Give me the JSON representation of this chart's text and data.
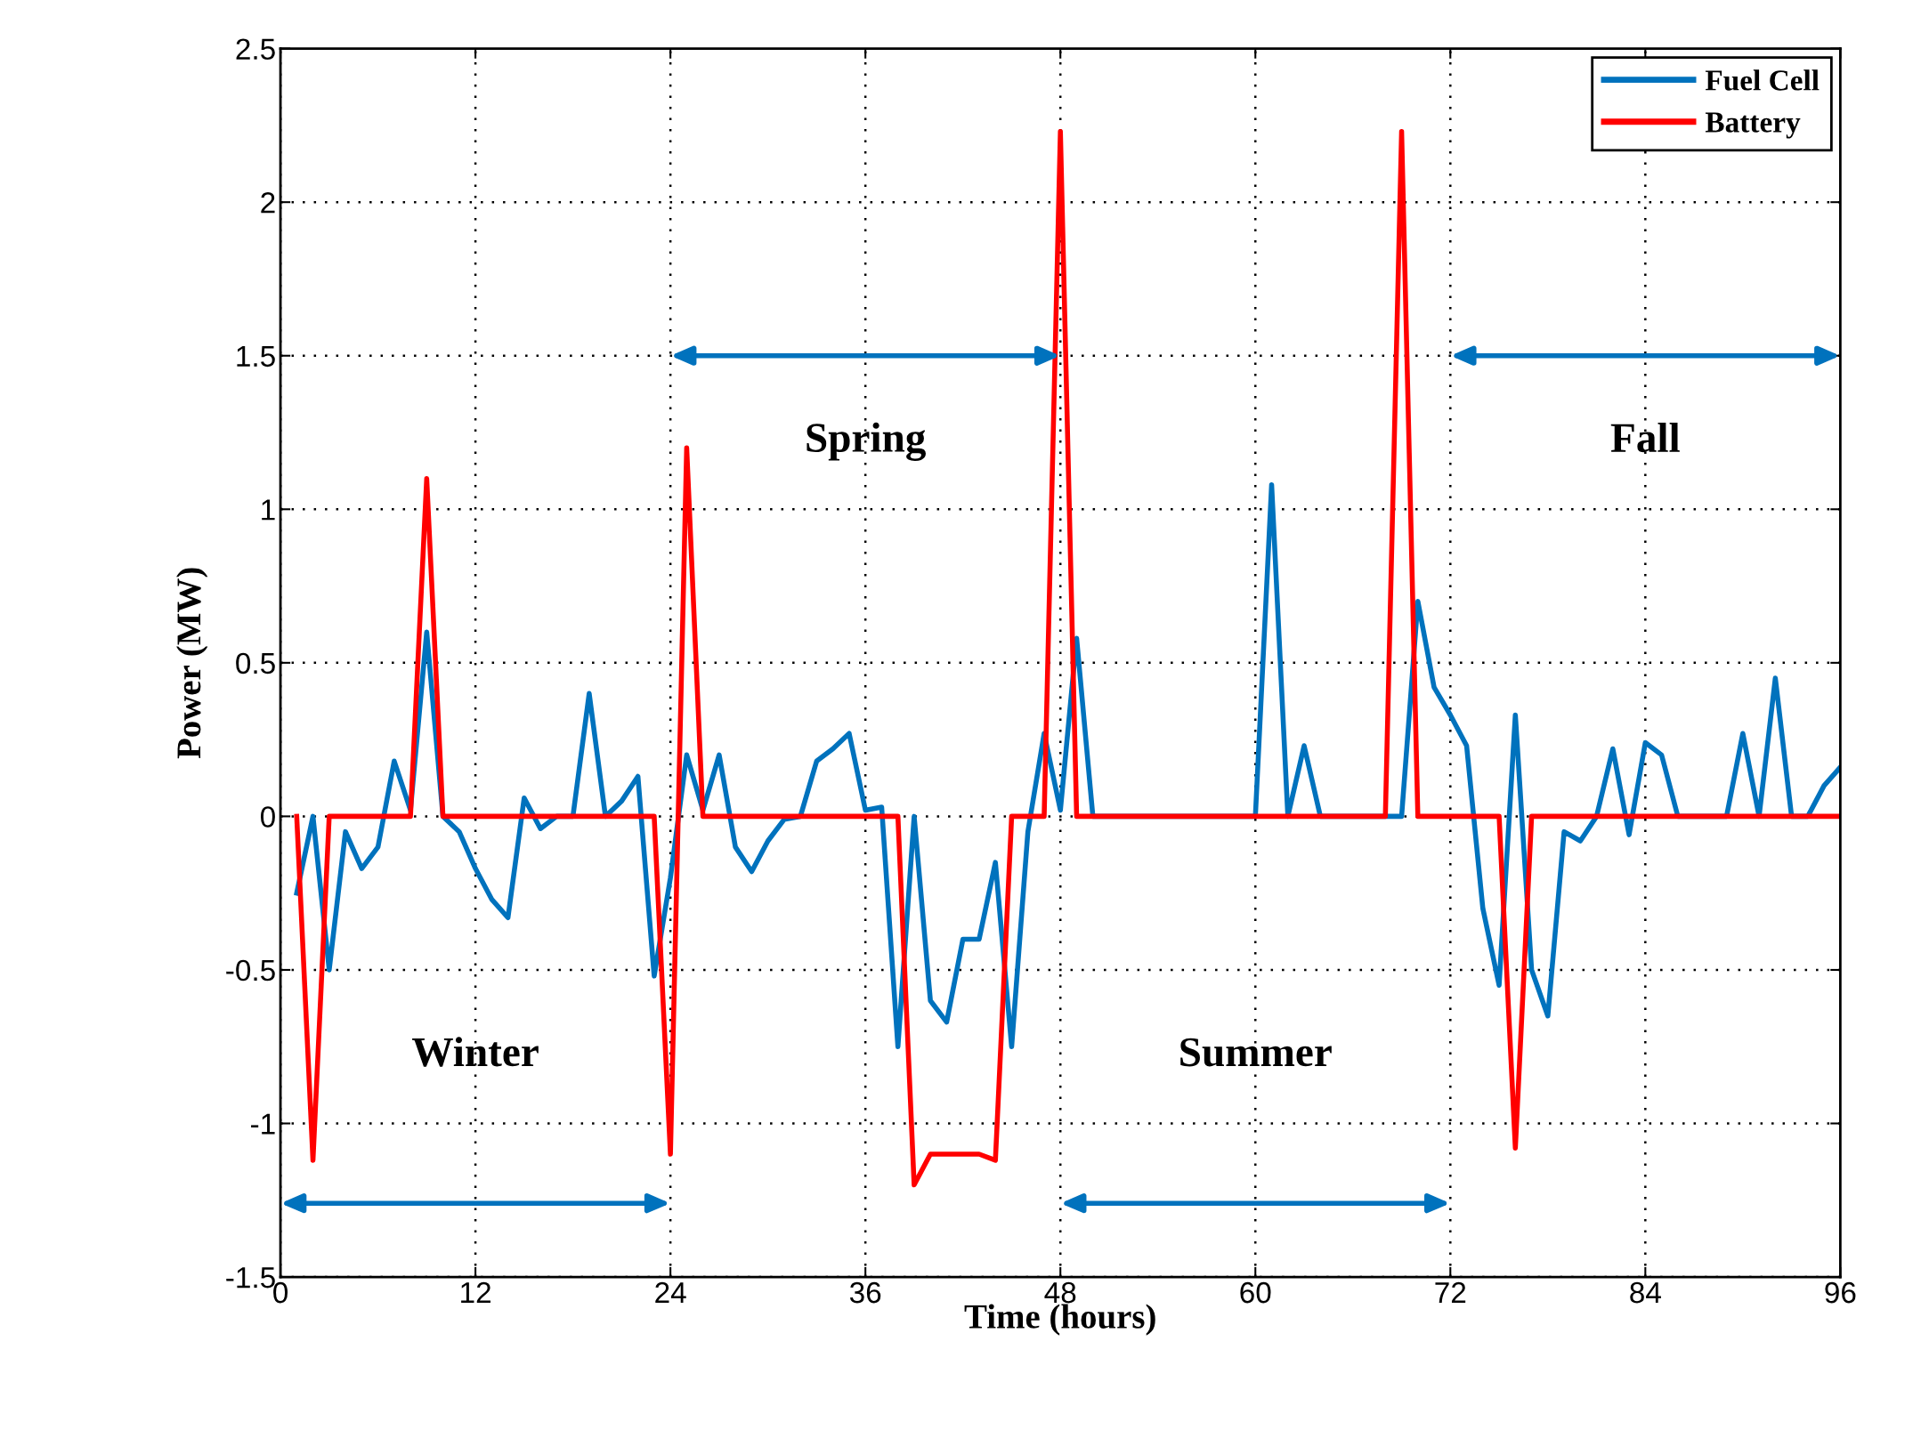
{
  "chart_data": {
    "type": "line",
    "xlabel": "Time (hours)",
    "ylabel": "Power (MW)",
    "x": [
      1,
      2,
      3,
      4,
      5,
      6,
      7,
      8,
      9,
      10,
      11,
      12,
      13,
      14,
      15,
      16,
      17,
      18,
      19,
      20,
      21,
      22,
      23,
      24,
      25,
      26,
      27,
      28,
      29,
      30,
      31,
      32,
      33,
      34,
      35,
      36,
      37,
      38,
      39,
      40,
      41,
      42,
      43,
      44,
      45,
      46,
      47,
      48,
      49,
      50,
      51,
      52,
      53,
      54,
      55,
      56,
      57,
      58,
      59,
      60,
      61,
      62,
      63,
      64,
      65,
      66,
      67,
      68,
      69,
      70,
      71,
      72,
      73,
      74,
      75,
      76,
      77,
      78,
      79,
      80,
      81,
      82,
      83,
      84,
      85,
      86,
      87,
      88,
      89,
      90,
      91,
      92,
      93,
      94,
      95,
      96
    ],
    "series": [
      {
        "name": "Fuel Cell",
        "color": "#0072bd",
        "values": [
          -0.25,
          0,
          -0.5,
          -0.05,
          -0.17,
          -0.1,
          0.18,
          0.02,
          0.6,
          0,
          -0.05,
          -0.17,
          -0.27,
          -0.33,
          0.06,
          -0.04,
          0,
          0,
          0.4,
          0,
          0.05,
          0.13,
          -0.52,
          -0.2,
          0.2,
          0.02,
          0.2,
          -0.1,
          -0.18,
          -0.08,
          -0.01,
          0,
          0.18,
          0.22,
          0.27,
          0.02,
          0.03,
          -0.75,
          0,
          -0.6,
          -0.67,
          -0.4,
          -0.4,
          -0.15,
          -0.75,
          -0.05,
          0.27,
          0.02,
          0.58,
          0,
          0,
          0,
          0,
          0,
          0,
          0,
          0,
          0,
          0,
          0,
          1.08,
          0,
          0.23,
          0,
          0,
          0,
          0,
          0,
          0,
          0.7,
          0.42,
          0.33,
          0.23,
          -0.3,
          -0.55,
          0.33,
          -0.5,
          -0.65,
          -0.05,
          -0.08,
          0,
          0.22,
          -0.06,
          0.24,
          0.2,
          0,
          0,
          0,
          0,
          0.27,
          0,
          0.45,
          0,
          0,
          0.1,
          0.16
        ]
      },
      {
        "name": "Battery",
        "color": "#ff0000",
        "values": [
          0,
          -1.12,
          0,
          0,
          0,
          0,
          0,
          0,
          1.1,
          0,
          0,
          0,
          0,
          0,
          0,
          0,
          0,
          0,
          0,
          0,
          0,
          0,
          0,
          -1.1,
          1.2,
          0,
          0,
          0,
          0,
          0,
          0,
          0,
          0,
          0,
          0,
          0,
          0,
          0,
          -1.2,
          -1.1,
          -1.1,
          -1.1,
          -1.1,
          -1.12,
          0,
          0,
          0,
          2.23,
          0,
          0,
          0,
          0,
          0,
          0,
          0,
          0,
          0,
          0,
          0,
          0,
          0,
          0,
          0,
          0,
          0,
          0,
          0,
          0,
          2.23,
          0,
          0,
          0,
          0,
          0,
          0,
          -1.08,
          0,
          0,
          0,
          0,
          0,
          0,
          0,
          0,
          0,
          0,
          0,
          0,
          0,
          0,
          0,
          0,
          0,
          0,
          0,
          0
        ]
      }
    ],
    "xlim": [
      0,
      96
    ],
    "xticks": [
      0,
      12,
      24,
      36,
      48,
      60,
      72,
      84,
      96
    ],
    "ylim": [
      -1.5,
      2.5
    ],
    "yticks": [
      -1.5,
      -1,
      -0.5,
      0,
      0.5,
      1,
      1.5,
      2,
      2.5
    ],
    "grid": true,
    "legend": "top right",
    "annotations": [
      "Winter",
      "Spring",
      "Summer",
      "Fall"
    ]
  }
}
